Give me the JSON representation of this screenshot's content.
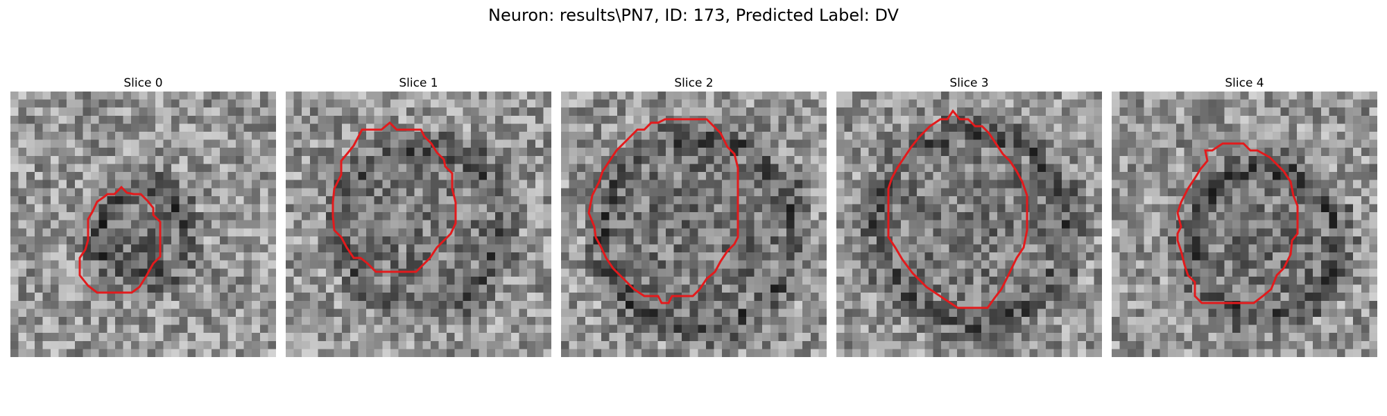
{
  "figure": {
    "title": "Neuron: results\\PN7, ID: 173, Predicted Label: DV"
  },
  "panels": [
    {
      "label": "Slice 0"
    },
    {
      "label": "Slice 1"
    },
    {
      "label": "Slice 2"
    },
    {
      "label": "Slice 3"
    },
    {
      "label": "Slice 4"
    }
  ],
  "colors": {
    "contour": "#e31a1c",
    "background": "#ffffff"
  }
}
